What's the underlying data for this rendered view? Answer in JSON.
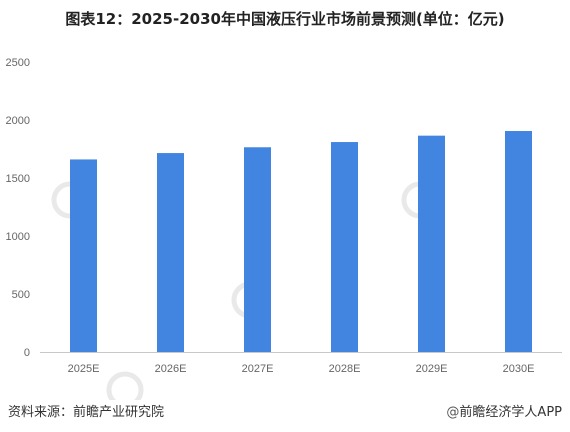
{
  "title": "图表12：2025-2030年中国液压行业市场前景预测(单位：亿元)",
  "footer": {
    "source": "资料来源：前瞻产业研究院",
    "brand_symbol": "@",
    "brand": "前瞻经济学人APP"
  },
  "colors": {
    "bar": "#4285e0",
    "axis": "#c8c8c8",
    "watermark": "#e9e9e9"
  },
  "chart_data": {
    "type": "bar",
    "categories": [
      "2025E",
      "2026E",
      "2027E",
      "2028E",
      "2029E",
      "2030E"
    ],
    "values": [
      1660,
      1715,
      1765,
      1810,
      1865,
      1905
    ],
    "title": "图表12：2025-2030年中国液压行业市场前景预测(单位：亿元)",
    "xlabel": "",
    "ylabel": "",
    "ylim": [
      0,
      2500
    ],
    "yticks": [
      0,
      500,
      1000,
      1500,
      2000,
      2500
    ],
    "grid": false,
    "legend": "none"
  }
}
